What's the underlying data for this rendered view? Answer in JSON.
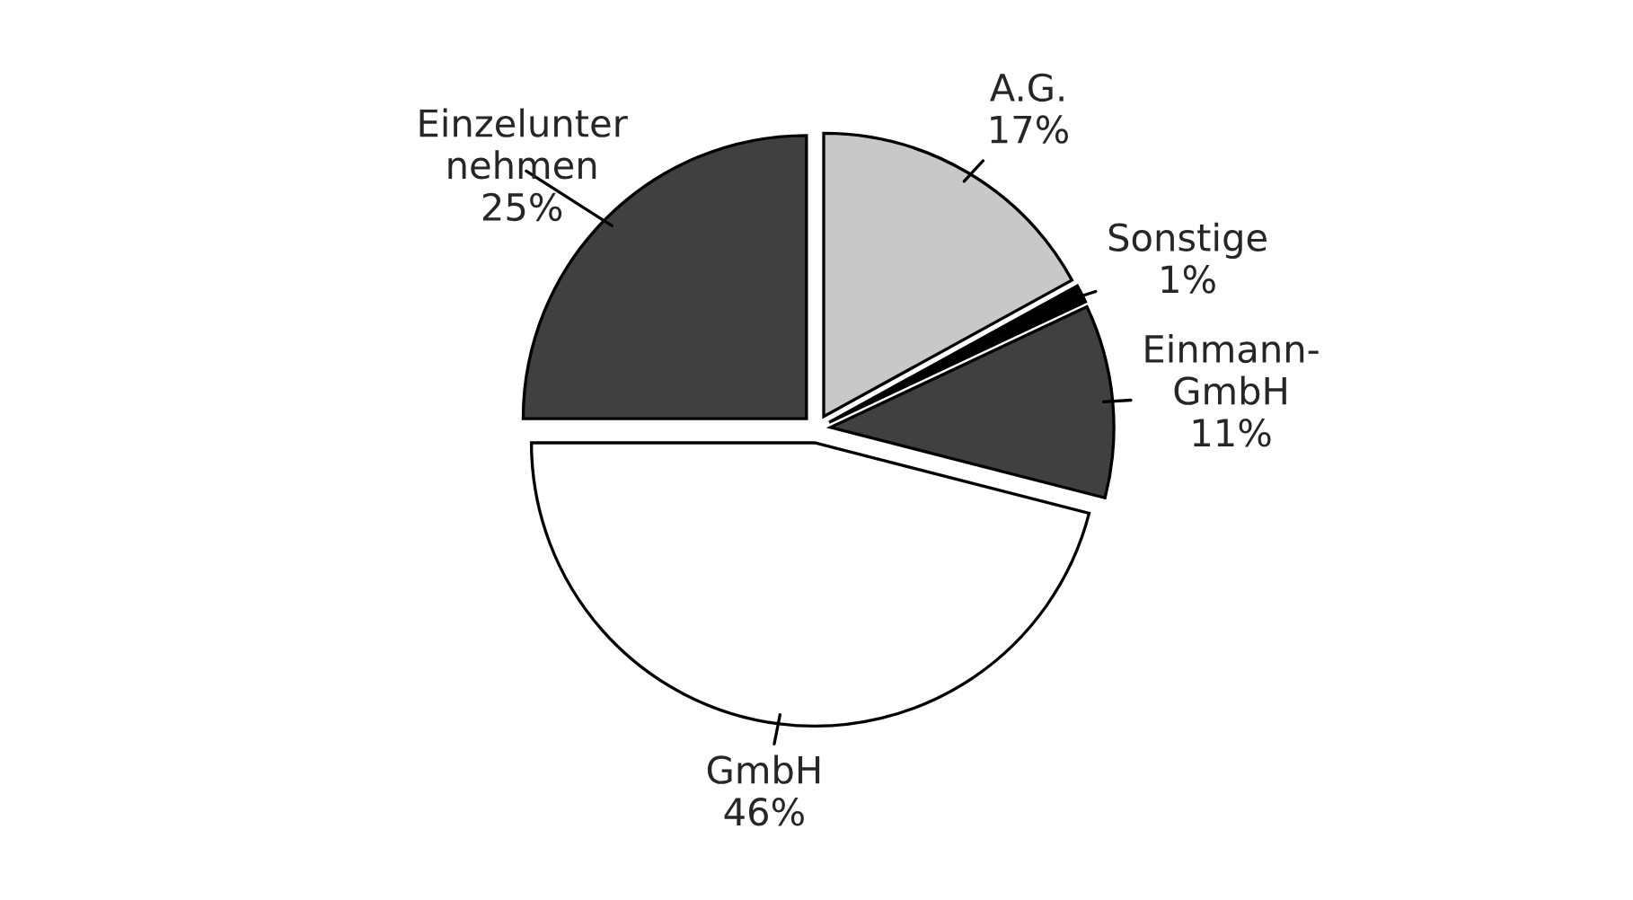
{
  "chart_data": {
    "type": "pie",
    "categories": [
      "A.G.",
      "Sonstige",
      "Einmann-\nGmbH",
      "GmbH",
      "Einzelunter\nnehmen"
    ],
    "values": [
      17,
      1,
      11,
      46,
      25
    ],
    "value_labels": [
      "17%",
      "1%",
      "11%",
      "46%",
      "25%"
    ],
    "colors": [
      "#c8c8c8",
      "#000000",
      "#404040",
      "#ffffff",
      "#404040"
    ]
  }
}
